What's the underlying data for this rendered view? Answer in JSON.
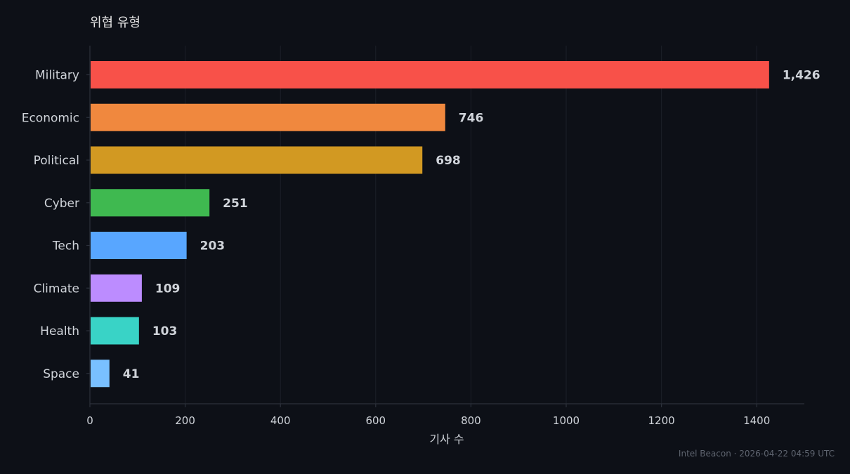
{
  "chart_data": {
    "type": "bar",
    "orientation": "horizontal",
    "title": "위협 유형",
    "xlabel": "기사 수",
    "ylabel": "",
    "categories": [
      "Military",
      "Economic",
      "Political",
      "Cyber",
      "Tech",
      "Climate",
      "Health",
      "Space"
    ],
    "values": [
      1426,
      746,
      698,
      251,
      203,
      109,
      103,
      41
    ],
    "value_labels": [
      "1,426",
      "746",
      "698",
      "251",
      "203",
      "109",
      "103",
      "41"
    ],
    "colors": [
      "#f85149",
      "#f0883e",
      "#d29922",
      "#3fb950",
      "#58a6ff",
      "#bc8cff",
      "#39d3c6",
      "#79c0ff"
    ],
    "xlim": [
      0,
      1500
    ],
    "xticks": [
      0,
      200,
      400,
      600,
      800,
      1000,
      1200,
      1400
    ],
    "grid": "vertical",
    "legend": "none"
  },
  "footer": "Intel Beacon · 2026-04-22 04:59 UTC",
  "colors": {
    "background": "#0d1017",
    "text": "#d0d4da",
    "muted": "#5f6570"
  }
}
